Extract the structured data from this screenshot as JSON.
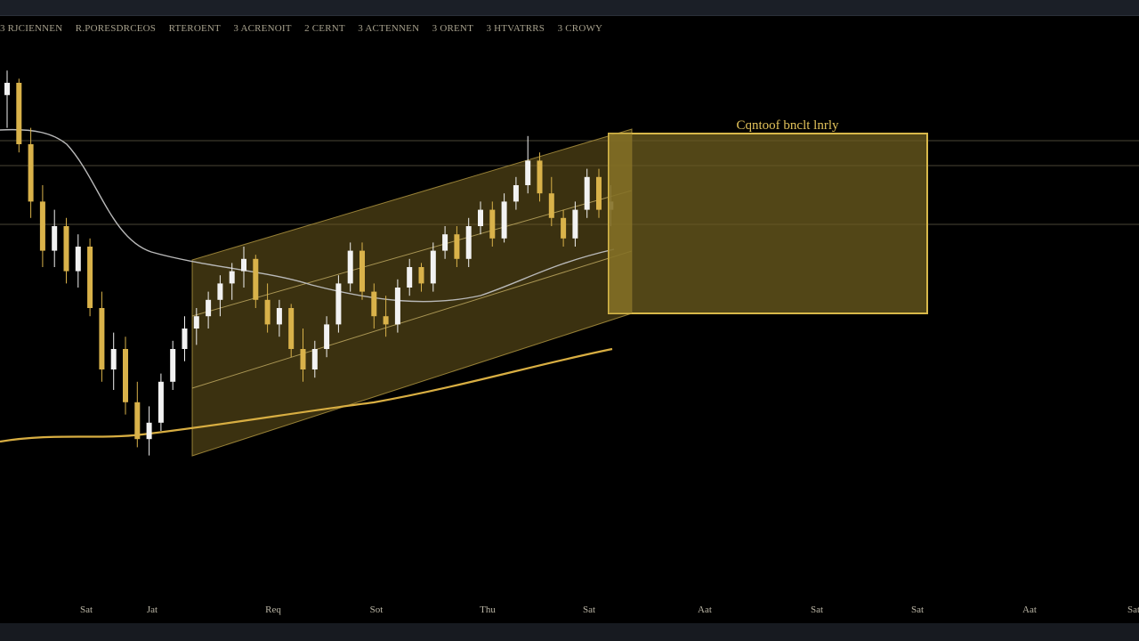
{
  "indicators": [
    "3 RJCIENNEN",
    "R.PORESDRCEOS",
    "RTEROENT",
    "3 ACRENOIT",
    "2 CERNT",
    "3 ACTENNEN",
    "3 ORENT",
    "3 HTVATRRS",
    "3 CROWY"
  ],
  "colors": {
    "background": "#000000",
    "bullish_candle": "#f2f2f2",
    "bearish_candle": "#d9b24a",
    "channel_fill": "#6b5a1e",
    "zone_fill": "#6e5d1f",
    "zone_border": "#d8b84a",
    "ma_slow": "#d8ae42",
    "ma_fast": "#b9b9b9"
  },
  "chart_data": {
    "type": "candlestick",
    "x_tick_labels": [
      "Sat",
      "Jat",
      "Req",
      "Sot",
      "Thu",
      "Sat",
      "Aat",
      "Sat",
      "Sat",
      "Aat",
      "Sat"
    ],
    "zone_label": "Cqntoof bnclt lnrly",
    "ohlc_relative": [
      [
        0.92,
        0.98,
        0.84,
        0.95
      ],
      [
        0.95,
        0.96,
        0.78,
        0.8
      ],
      [
        0.8,
        0.84,
        0.62,
        0.66
      ],
      [
        0.66,
        0.7,
        0.5,
        0.54
      ],
      [
        0.54,
        0.64,
        0.5,
        0.6
      ],
      [
        0.6,
        0.62,
        0.46,
        0.49
      ],
      [
        0.49,
        0.58,
        0.45,
        0.55
      ],
      [
        0.55,
        0.57,
        0.38,
        0.4
      ],
      [
        0.4,
        0.44,
        0.22,
        0.25
      ],
      [
        0.25,
        0.34,
        0.2,
        0.3
      ],
      [
        0.3,
        0.33,
        0.14,
        0.17
      ],
      [
        0.17,
        0.22,
        0.06,
        0.08
      ],
      [
        0.08,
        0.16,
        0.04,
        0.12
      ],
      [
        0.12,
        0.24,
        0.1,
        0.22
      ],
      [
        0.22,
        0.32,
        0.2,
        0.3
      ],
      [
        0.3,
        0.38,
        0.27,
        0.35
      ],
      [
        0.35,
        0.4,
        0.31,
        0.38
      ],
      [
        0.38,
        0.44,
        0.35,
        0.42
      ],
      [
        0.42,
        0.48,
        0.38,
        0.46
      ],
      [
        0.46,
        0.51,
        0.42,
        0.49
      ],
      [
        0.49,
        0.55,
        0.45,
        0.52
      ],
      [
        0.52,
        0.53,
        0.4,
        0.42
      ],
      [
        0.42,
        0.46,
        0.34,
        0.36
      ],
      [
        0.36,
        0.42,
        0.33,
        0.4
      ],
      [
        0.4,
        0.41,
        0.28,
        0.3
      ],
      [
        0.3,
        0.35,
        0.22,
        0.25
      ],
      [
        0.25,
        0.32,
        0.23,
        0.3
      ],
      [
        0.3,
        0.38,
        0.28,
        0.36
      ],
      [
        0.36,
        0.48,
        0.34,
        0.46
      ],
      [
        0.46,
        0.56,
        0.44,
        0.54
      ],
      [
        0.54,
        0.56,
        0.42,
        0.44
      ],
      [
        0.44,
        0.46,
        0.35,
        0.38
      ],
      [
        0.38,
        0.43,
        0.33,
        0.36
      ],
      [
        0.36,
        0.47,
        0.34,
        0.45
      ],
      [
        0.45,
        0.52,
        0.43,
        0.5
      ],
      [
        0.5,
        0.51,
        0.44,
        0.46
      ],
      [
        0.46,
        0.56,
        0.44,
        0.54
      ],
      [
        0.54,
        0.6,
        0.52,
        0.58
      ],
      [
        0.58,
        0.6,
        0.5,
        0.52
      ],
      [
        0.52,
        0.62,
        0.5,
        0.6
      ],
      [
        0.6,
        0.66,
        0.58,
        0.64
      ],
      [
        0.64,
        0.66,
        0.55,
        0.57
      ],
      [
        0.57,
        0.68,
        0.56,
        0.66
      ],
      [
        0.66,
        0.72,
        0.64,
        0.7
      ],
      [
        0.7,
        0.82,
        0.68,
        0.76
      ],
      [
        0.76,
        0.78,
        0.66,
        0.68
      ],
      [
        0.68,
        0.72,
        0.6,
        0.62
      ],
      [
        0.62,
        0.64,
        0.55,
        0.57
      ],
      [
        0.57,
        0.66,
        0.55,
        0.64
      ],
      [
        0.64,
        0.74,
        0.62,
        0.72
      ],
      [
        0.72,
        0.74,
        0.62,
        0.64
      ],
      [
        0.64,
        0.7,
        0.6,
        0.66
      ]
    ]
  }
}
